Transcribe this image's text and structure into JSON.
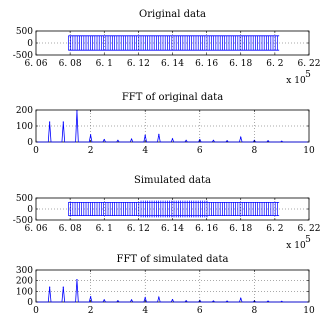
{
  "chart_data": [
    {
      "type": "line",
      "title": "Original data",
      "xlim": [
        60600,
        62200
      ],
      "ylim": [
        -500,
        500
      ],
      "x_ticks": [
        "6. 06",
        "6. 08",
        "6. 1",
        "6. 12",
        "6. 14",
        "6. 16",
        "6. 18",
        "6. 2",
        "6. 22"
      ],
      "y_ticks": [
        "500",
        "0",
        "-500"
      ],
      "x_exponent": "x 10",
      "x_exponent_power": "5",
      "grid": true,
      "series": [
        {
          "x_start": 60790,
          "x_end": 62025,
          "amplitude": 300,
          "color": "#0000ff"
        }
      ]
    },
    {
      "type": "line",
      "title": "FFT of original data",
      "xlim": [
        0,
        10
      ],
      "ylim": [
        0,
        200
      ],
      "x_ticks": [
        "0",
        "2",
        "4",
        "6",
        "8",
        "10"
      ],
      "y_ticks": [
        "200",
        "100",
        "0"
      ],
      "grid": true,
      "series": [
        {
          "color": "#0000ff",
          "peaks": [
            {
              "x": 0.5,
              "y": 125
            },
            {
              "x": 1.0,
              "y": 125
            },
            {
              "x": 1.5,
              "y": 195
            },
            {
              "x": 2.0,
              "y": 45
            },
            {
              "x": 2.5,
              "y": 15
            },
            {
              "x": 3.0,
              "y": 10
            },
            {
              "x": 3.5,
              "y": 18
            },
            {
              "x": 4.0,
              "y": 42
            },
            {
              "x": 4.5,
              "y": 48
            },
            {
              "x": 5.0,
              "y": 20
            },
            {
              "x": 5.5,
              "y": 10
            },
            {
              "x": 6.0,
              "y": 15
            },
            {
              "x": 6.5,
              "y": 10
            },
            {
              "x": 7.0,
              "y": 8
            },
            {
              "x": 7.5,
              "y": 30
            },
            {
              "x": 8.0,
              "y": 10
            },
            {
              "x": 8.5,
              "y": 8
            },
            {
              "x": 9.0,
              "y": 5
            }
          ]
        }
      ]
    },
    {
      "type": "line",
      "title": "Simulated data",
      "xlim": [
        60600,
        62200
      ],
      "ylim": [
        -500,
        500
      ],
      "x_ticks": [
        "6. 06",
        "6. 08",
        "6. 1",
        "6. 12",
        "6. 14",
        "6. 16",
        "6. 18",
        "6. 2",
        "6. 22"
      ],
      "y_ticks": [
        "500",
        "0",
        "-500"
      ],
      "x_exponent": "x 10",
      "x_exponent_power": "5",
      "grid": true,
      "series": [
        {
          "x_start": 60790,
          "x_end": 62025,
          "amplitude": 300,
          "color": "#0000ff",
          "burst_start": 61210,
          "burst_end": 61610,
          "burst_amplitude": 380
        }
      ]
    },
    {
      "type": "line",
      "title": "FFT of simulated data",
      "xlim": [
        0,
        10
      ],
      "ylim": [
        0,
        300
      ],
      "x_ticks": [
        "0",
        "2",
        "4",
        "6",
        "8",
        "10"
      ],
      "y_ticks": [
        "300",
        "200",
        "100",
        "0"
      ],
      "grid": true,
      "series": [
        {
          "color": "#0000ff",
          "peaks": [
            {
              "x": 0.5,
              "y": 140
            },
            {
              "x": 1.0,
              "y": 140
            },
            {
              "x": 1.5,
              "y": 210
            },
            {
              "x": 2.0,
              "y": 50
            },
            {
              "x": 2.5,
              "y": 20
            },
            {
              "x": 3.0,
              "y": 12
            },
            {
              "x": 3.5,
              "y": 20
            },
            {
              "x": 4.0,
              "y": 40
            },
            {
              "x": 4.5,
              "y": 45
            },
            {
              "x": 5.0,
              "y": 22
            },
            {
              "x": 5.5,
              "y": 12
            },
            {
              "x": 6.0,
              "y": 15
            },
            {
              "x": 6.5,
              "y": 10
            },
            {
              "x": 7.0,
              "y": 8
            },
            {
              "x": 7.5,
              "y": 35
            },
            {
              "x": 8.0,
              "y": 10
            },
            {
              "x": 8.5,
              "y": 8
            },
            {
              "x": 9.0,
              "y": 6
            }
          ]
        }
      ]
    }
  ]
}
